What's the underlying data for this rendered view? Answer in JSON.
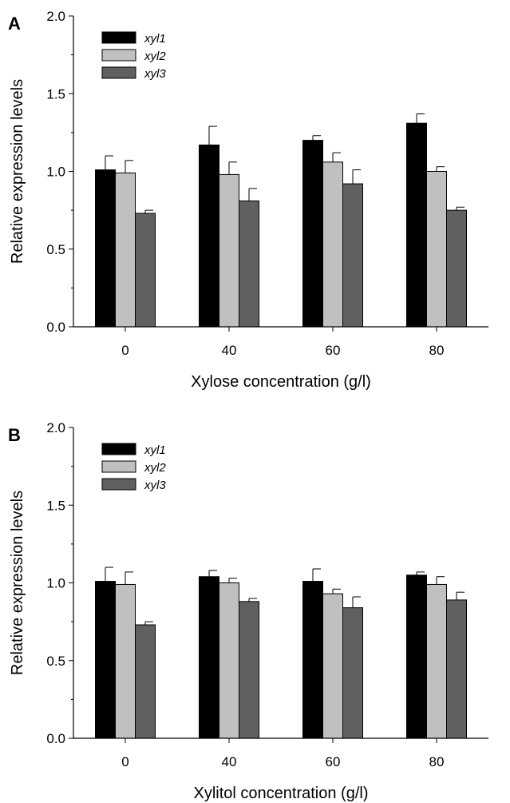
{
  "colors": {
    "xyl1": "#000000",
    "xyl2": "#c0c0c0",
    "xyl3": "#606060",
    "axis": "#000000"
  },
  "chart_data": [
    {
      "type": "bar",
      "panel_label": "A",
      "categories": [
        "0",
        "40",
        "60",
        "80"
      ],
      "xlabel": "Xylose concentration (g/l)",
      "ylabel": "Relative expression levels",
      "ylim": [
        0,
        2.0
      ],
      "yticks": [
        "0.0",
        "0.5",
        "1.0",
        "1.5",
        "2.0"
      ],
      "legend": "top-left",
      "grid": false,
      "series": [
        {
          "name": "xyl1",
          "values": [
            1.01,
            1.17,
            1.2,
            1.31
          ],
          "errors": [
            0.09,
            0.12,
            0.03,
            0.06
          ]
        },
        {
          "name": "xyl2",
          "values": [
            0.99,
            0.98,
            1.06,
            1.0
          ],
          "errors": [
            0.08,
            0.08,
            0.06,
            0.03
          ]
        },
        {
          "name": "xyl3",
          "values": [
            0.73,
            0.81,
            0.92,
            0.75
          ],
          "errors": [
            0.02,
            0.08,
            0.09,
            0.02
          ]
        }
      ]
    },
    {
      "type": "bar",
      "panel_label": "B",
      "categories": [
        "0",
        "40",
        "60",
        "80"
      ],
      "xlabel": "Xylitol concentration (g/l)",
      "ylabel": "Relative expression levels",
      "ylim": [
        0,
        2.0
      ],
      "yticks": [
        "0.0",
        "0.5",
        "1.0",
        "1.5",
        "2.0"
      ],
      "legend": "top-left",
      "grid": false,
      "series": [
        {
          "name": "xyl1",
          "values": [
            1.01,
            1.04,
            1.01,
            1.05
          ],
          "errors": [
            0.09,
            0.04,
            0.08,
            0.02
          ]
        },
        {
          "name": "xyl2",
          "values": [
            0.99,
            1.0,
            0.93,
            0.99
          ],
          "errors": [
            0.08,
            0.03,
            0.03,
            0.05
          ]
        },
        {
          "name": "xyl3",
          "values": [
            0.73,
            0.88,
            0.84,
            0.89
          ],
          "errors": [
            0.02,
            0.02,
            0.07,
            0.05
          ]
        }
      ]
    }
  ]
}
